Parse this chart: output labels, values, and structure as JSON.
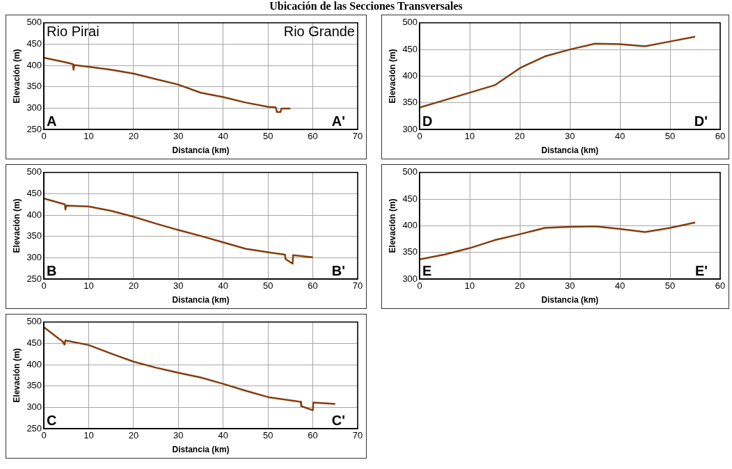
{
  "chart_data": [
    {
      "type": "line",
      "title": "Ubicación de las Secciones Transversales",
      "xlabel": "Distancia (km)",
      "ylabel": "Elevación (m)",
      "annotations": [
        "Rio Pirai",
        "Rio Grande",
        "A",
        "A'"
      ],
      "x": [
        0,
        5,
        6.5,
        6.6,
        6.8,
        10,
        15,
        20,
        25,
        30,
        35,
        40,
        45,
        50,
        51.7,
        52,
        52.8,
        53,
        55
      ],
      "series": [
        {
          "color": "#843c0c",
          "values": [
            418,
            407,
            403,
            390,
            401,
            397,
            390,
            381,
            368,
            355,
            336,
            326,
            313,
            303,
            302,
            291,
            291,
            299,
            299
          ]
        }
      ],
      "xlim": [
        0,
        70
      ],
      "xticks": [
        0,
        10,
        20,
        30,
        40,
        50,
        60,
        70
      ],
      "ylim": [
        250,
        500
      ],
      "yticks": [
        250,
        300,
        350,
        400,
        450,
        500
      ],
      "grid": true,
      "legend": false
    },
    {
      "type": "line",
      "xlabel": "Distancia (km)",
      "ylabel": "Elevación (m)",
      "annotations": [
        "D",
        "D'"
      ],
      "x": [
        0,
        5,
        10,
        15,
        20,
        25,
        30,
        35,
        40,
        45,
        50,
        55
      ],
      "series": [
        {
          "color": "#843c0c",
          "values": [
            341,
            355,
            369,
            383,
            415,
            437,
            450,
            461,
            460,
            456,
            465,
            474
          ]
        }
      ],
      "xlim": [
        0,
        60
      ],
      "xticks": [
        0,
        10,
        20,
        30,
        40,
        50,
        60
      ],
      "ylim": [
        300,
        500
      ],
      "yticks": [
        300,
        350,
        400,
        450,
        500
      ],
      "grid": true,
      "legend": false
    },
    {
      "type": "line",
      "xlabel": "Distancia (km)",
      "ylabel": "Elevación (m)",
      "annotations": [
        "B",
        "B'"
      ],
      "x": [
        0,
        4.7,
        4.8,
        5,
        10,
        15,
        20,
        25,
        30,
        35,
        40,
        45,
        50,
        53.8,
        53.9,
        55.5,
        55.6,
        60
      ],
      "series": [
        {
          "color": "#843c0c",
          "values": [
            439,
            425,
            413,
            422,
            420,
            410,
            396,
            380,
            365,
            351,
            336,
            321,
            313,
            307,
            297,
            286,
            306,
            301
          ]
        }
      ],
      "xlim": [
        0,
        70
      ],
      "xticks": [
        0,
        10,
        20,
        30,
        40,
        50,
        60,
        70
      ],
      "ylim": [
        250,
        500
      ],
      "yticks": [
        250,
        300,
        350,
        400,
        450,
        500
      ],
      "grid": true,
      "legend": false
    },
    {
      "type": "line",
      "xlabel": "Distancia (km)",
      "ylabel": "Elevación (m)",
      "annotations": [
        "E",
        "E'"
      ],
      "x": [
        0,
        5,
        10,
        15,
        20,
        25,
        30,
        35,
        40,
        45,
        50,
        55
      ],
      "series": [
        {
          "color": "#843c0c",
          "values": [
            337,
            346,
            358,
            373,
            384,
            396,
            398,
            399,
            394,
            388,
            396,
            406
          ]
        }
      ],
      "xlim": [
        0,
        60
      ],
      "xticks": [
        0,
        10,
        20,
        30,
        40,
        50,
        60
      ],
      "ylim": [
        300,
        500
      ],
      "yticks": [
        300,
        350,
        400,
        450,
        500
      ],
      "grid": true,
      "legend": false
    },
    {
      "type": "line",
      "xlabel": "Distancia (km)",
      "ylabel": "Elevación (m)",
      "annotations": [
        "C",
        "C'"
      ],
      "x": [
        0,
        4.2,
        4.6,
        4.8,
        10,
        15,
        20,
        25,
        30,
        35,
        40,
        45,
        50,
        57.3,
        57.4,
        60,
        60.1,
        65
      ],
      "series": [
        {
          "color": "#843c0c",
          "values": [
            488,
            454,
            447,
            457,
            446,
            426,
            407,
            393,
            381,
            370,
            355,
            339,
            324,
            313,
            303,
            293,
            311,
            308
          ]
        }
      ],
      "xlim": [
        0,
        70
      ],
      "xticks": [
        0,
        10,
        20,
        30,
        40,
        50,
        60,
        70
      ],
      "ylim": [
        250,
        500
      ],
      "yticks": [
        250,
        300,
        350,
        400,
        450,
        500
      ],
      "grid": true,
      "legend": false
    }
  ]
}
